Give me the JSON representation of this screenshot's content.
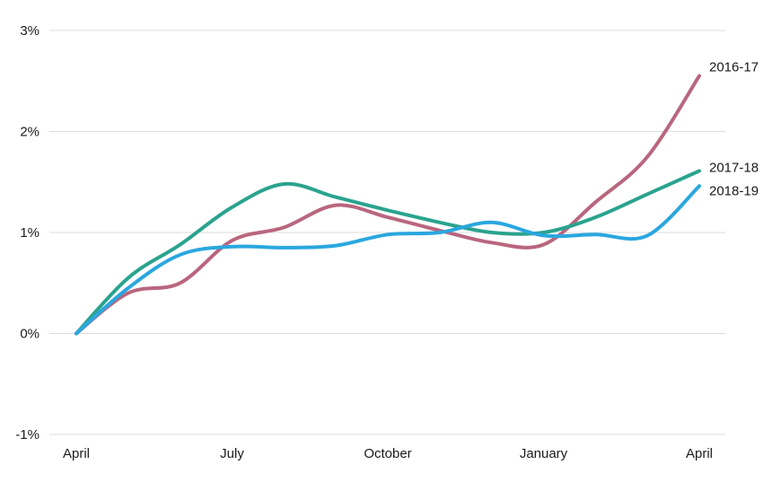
{
  "chart_data": {
    "type": "line",
    "title": "",
    "xlabel": "",
    "ylabel": "",
    "grid": true,
    "y_ticks": [
      {
        "value": 3,
        "label": "3%"
      },
      {
        "value": 2,
        "label": "2%"
      },
      {
        "value": 1,
        "label": "1%"
      },
      {
        "value": 0,
        "label": "0%"
      },
      {
        "value": -1,
        "label": "-1%"
      }
    ],
    "ylim": [
      -1,
      3
    ],
    "x_ticks": [
      {
        "value": 0,
        "label": "April"
      },
      {
        "value": 3,
        "label": "July"
      },
      {
        "value": 6,
        "label": "October"
      },
      {
        "value": 9,
        "label": "January"
      },
      {
        "value": 12,
        "label": "April"
      }
    ],
    "xlim": [
      0,
      12
    ],
    "series": [
      {
        "name": "2016-17",
        "color": "#b9667e",
        "x": [
          0,
          1,
          2,
          3,
          4,
          5,
          6,
          7,
          8,
          9,
          10,
          11,
          12
        ],
        "values": [
          0,
          0.4,
          0.5,
          0.92,
          1.05,
          1.27,
          1.15,
          1.02,
          0.9,
          0.88,
          1.3,
          1.75,
          2.55
        ]
      },
      {
        "name": "2017-18",
        "color": "#2aa38e",
        "x": [
          0,
          1,
          2,
          3,
          4,
          5,
          6,
          7,
          8,
          9,
          10,
          11,
          12
        ],
        "values": [
          0,
          0.55,
          0.88,
          1.25,
          1.48,
          1.35,
          1.22,
          1.1,
          1.0,
          1.0,
          1.15,
          1.38,
          1.61
        ]
      },
      {
        "name": "2018-19",
        "color": "#2aa7df",
        "x": [
          0,
          1,
          2,
          3,
          4,
          5,
          6,
          7,
          8,
          9,
          10,
          11,
          12
        ],
        "values": [
          0,
          0.45,
          0.78,
          0.86,
          0.85,
          0.87,
          0.98,
          1.0,
          1.1,
          0.97,
          0.98,
          0.97,
          1.46
        ]
      }
    ]
  }
}
